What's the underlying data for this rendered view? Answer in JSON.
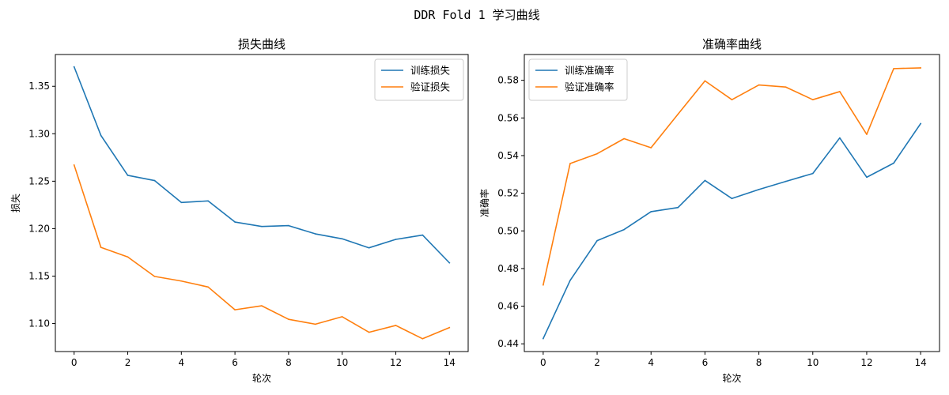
{
  "figure": {
    "suptitle": "DDR Fold 1 学习曲线"
  },
  "colors": {
    "train": "#1f77b4",
    "val": "#ff7f0e",
    "axes": "#000000",
    "background": "#ffffff"
  },
  "chart_data": [
    {
      "type": "line",
      "title": "损失曲线",
      "xlabel": "轮次",
      "ylabel": "损失",
      "x": [
        0,
        1,
        2,
        3,
        4,
        5,
        6,
        7,
        8,
        9,
        10,
        11,
        12,
        13,
        14
      ],
      "xlim": [
        -0.7,
        14.7
      ],
      "ylim": [
        1.0705,
        1.3835
      ],
      "xticks": [
        0,
        2,
        4,
        6,
        8,
        10,
        12,
        14
      ],
      "yticks": [
        1.1,
        1.15,
        1.2,
        1.25,
        1.3,
        1.35
      ],
      "ytick_labels": [
        "1.10",
        "1.15",
        "1.20",
        "1.25",
        "1.30",
        "1.35"
      ],
      "legend_position": "top-right",
      "grid": false,
      "series": [
        {
          "name": "训练损失",
          "color": "#1f77b4",
          "values": [
            1.3705,
            1.2982,
            1.2562,
            1.2507,
            1.2276,
            1.2292,
            1.207,
            1.2023,
            1.2032,
            1.1945,
            1.1893,
            1.1798,
            1.1887,
            1.1932,
            1.164
          ]
        },
        {
          "name": "验证损失",
          "color": "#ff7f0e",
          "values": [
            1.267,
            1.1803,
            1.1702,
            1.1497,
            1.1448,
            1.1385,
            1.1145,
            1.1187,
            1.1045,
            1.0993,
            1.1072,
            1.0908,
            1.098,
            1.084,
            1.0957
          ]
        }
      ]
    },
    {
      "type": "line",
      "title": "准确率曲线",
      "xlabel": "轮次",
      "ylabel": "准确率",
      "x": [
        0,
        1,
        2,
        3,
        4,
        5,
        6,
        7,
        8,
        9,
        10,
        11,
        12,
        13,
        14
      ],
      "xlim": [
        -0.7,
        14.7
      ],
      "ylim": [
        0.4359,
        0.5937
      ],
      "xticks": [
        0,
        2,
        4,
        6,
        8,
        10,
        12,
        14
      ],
      "yticks": [
        0.44,
        0.46,
        0.48,
        0.5,
        0.52,
        0.54,
        0.56,
        0.58
      ],
      "ytick_labels": [
        "0.44",
        "0.46",
        "0.48",
        "0.50",
        "0.52",
        "0.54",
        "0.56",
        "0.58"
      ],
      "legend_position": "top-left",
      "grid": false,
      "series": [
        {
          "name": "训练准确率",
          "color": "#1f77b4",
          "values": [
            0.4428,
            0.4737,
            0.4948,
            0.5007,
            0.5102,
            0.5124,
            0.5268,
            0.5172,
            0.522,
            0.5263,
            0.5305,
            0.5494,
            0.5285,
            0.536,
            0.557
          ]
        },
        {
          "name": "验证准确率",
          "color": "#ff7f0e",
          "values": [
            0.4713,
            0.5358,
            0.541,
            0.549,
            0.5442,
            0.562,
            0.5797,
            0.5697,
            0.5775,
            0.5764,
            0.5697,
            0.574,
            0.5513,
            0.5862,
            0.5866
          ]
        }
      ]
    }
  ]
}
